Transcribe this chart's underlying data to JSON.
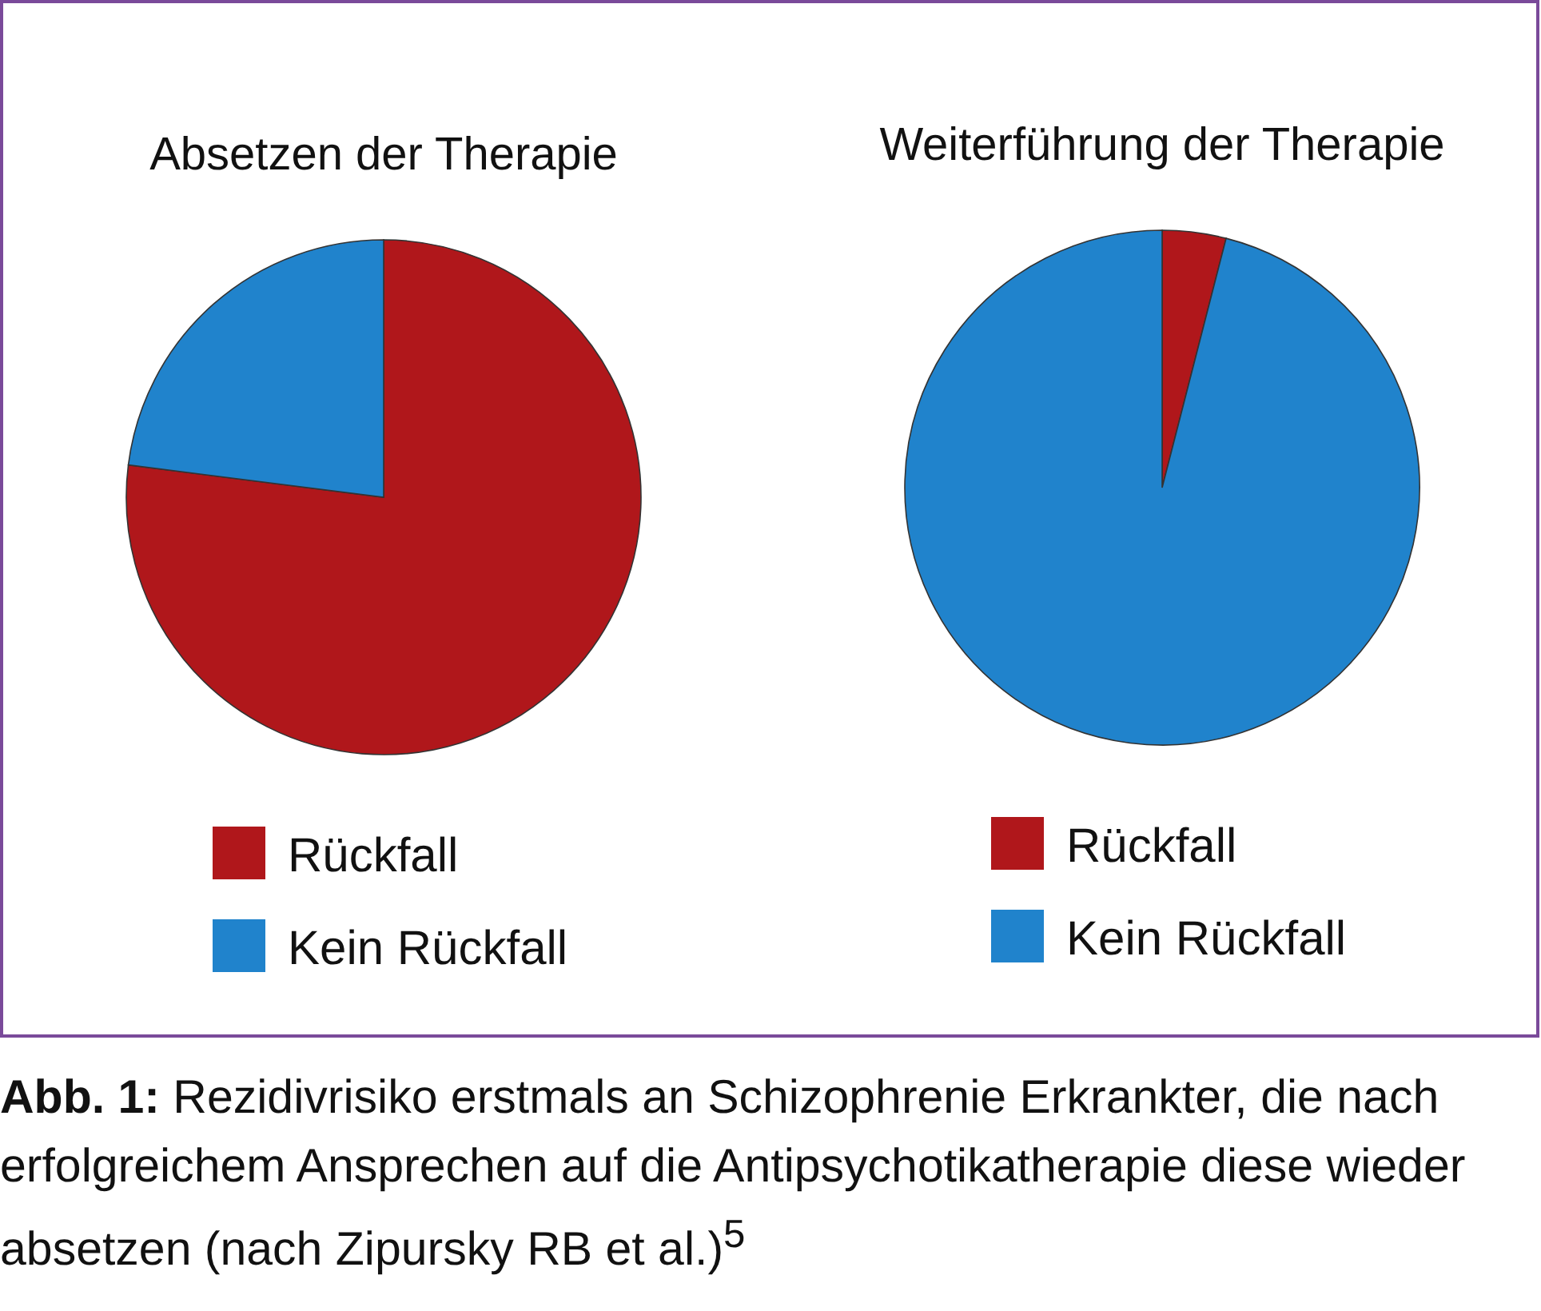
{
  "chart_data": [
    {
      "type": "pie",
      "title": "Absetzen der Therapie",
      "categories": [
        "Rückfall",
        "Kein Rückfall"
      ],
      "values": [
        77,
        23
      ],
      "colors": [
        "#b0171b",
        "#2083cc"
      ],
      "legend": "bottom",
      "annotations": [
        "**Abb. 1:** Rezidivrisiko erstmals an Schizophrenie Erkrankter, die nach erfolgreichem Ansprechen auf die Antipsychotikatherapie diese wieder absetzen (nach Zipursky RB et al.)$^{5}$"
      ]
    },
    {
      "type": "pie",
      "title": "Weiterführung der Therapie",
      "categories": [
        "Rückfall",
        "Kein Rückfall"
      ],
      "values": [
        4,
        96
      ],
      "colors": [
        "#b0171b",
        "#2083cc"
      ],
      "legend": "bottom"
    }
  ]
}
